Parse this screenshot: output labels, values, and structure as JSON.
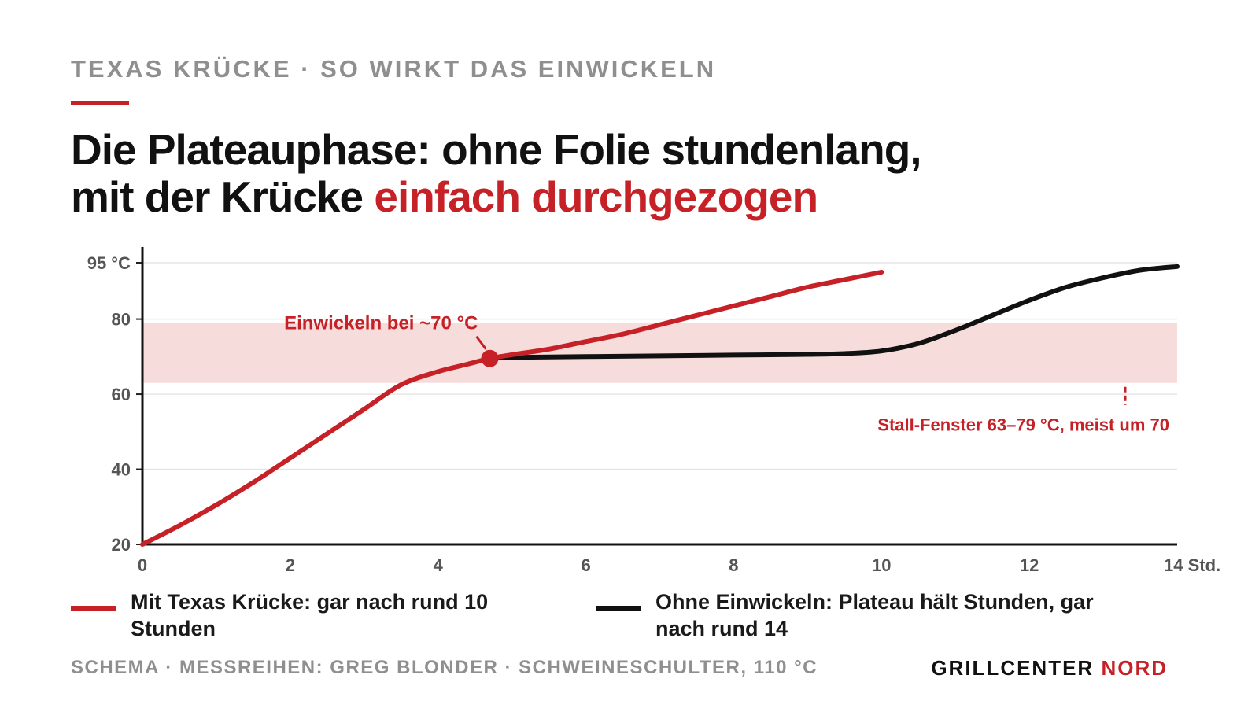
{
  "header": {
    "eyebrow": "TEXAS KRÜCKE · SO WIRKT DAS EINWICKELN",
    "headline_line1": "Die Plateauphase: ohne Folie stundenlang,",
    "headline_line2_prefix": "mit der Krücke ",
    "headline_line2_highlight": "einfach durchgezogen"
  },
  "colors": {
    "accent": "#c62127",
    "black": "#111111",
    "band": "#f7dcdc",
    "grid": "#e6e6e6",
    "muted": "#8f8f8f"
  },
  "chart_data": {
    "type": "line",
    "xlabel": "",
    "ylabel": "",
    "x_unit_label": "Std.",
    "y_unit_label": "°C",
    "xlim": [
      0,
      14
    ],
    "ylim": [
      20,
      95
    ],
    "x_ticks": [
      0,
      2,
      4,
      6,
      8,
      10,
      12,
      14
    ],
    "x_tick_labels": [
      "0",
      "2",
      "4",
      "6",
      "8",
      "10",
      "12",
      "14 Std."
    ],
    "y_ticks": [
      20,
      40,
      60,
      80,
      95
    ],
    "y_tick_labels": [
      "20",
      "40",
      "60",
      "80",
      "95 °C"
    ],
    "grid": true,
    "band": {
      "from": 63,
      "to": 79,
      "label": "Stall-Fenster 63–79 °C, meist um 70",
      "marker_x": 13.3
    },
    "series": [
      {
        "name": "Mit Texas Krücke: gar nach rund 10 Stunden",
        "color": "#c62127",
        "points": [
          [
            0,
            20
          ],
          [
            0.5,
            25
          ],
          [
            1,
            30.5
          ],
          [
            1.5,
            36.5
          ],
          [
            2,
            43
          ],
          [
            2.5,
            49.5
          ],
          [
            3,
            56
          ],
          [
            3.5,
            62.5
          ],
          [
            4,
            66
          ],
          [
            4.4,
            68
          ],
          [
            4.7,
            69.5
          ],
          [
            5,
            70.5
          ],
          [
            5.5,
            72
          ],
          [
            6,
            74
          ],
          [
            6.5,
            76
          ],
          [
            7,
            78.5
          ],
          [
            7.5,
            81
          ],
          [
            8,
            83.5
          ],
          [
            8.5,
            86
          ],
          [
            9,
            88.5
          ],
          [
            9.5,
            90.5
          ],
          [
            10,
            92.5
          ]
        ]
      },
      {
        "name": "Ohne Einwickeln: Plateau hält Stunden, gar nach rund 14",
        "color": "#111111",
        "points": [
          [
            4.7,
            69.5
          ],
          [
            5,
            69.8
          ],
          [
            6,
            70
          ],
          [
            7,
            70.2
          ],
          [
            8,
            70.4
          ],
          [
            9,
            70.6
          ],
          [
            9.5,
            70.8
          ],
          [
            10,
            71.5
          ],
          [
            10.5,
            73.5
          ],
          [
            11,
            77
          ],
          [
            11.5,
            81
          ],
          [
            12,
            85
          ],
          [
            12.5,
            88.5
          ],
          [
            13,
            91
          ],
          [
            13.5,
            93
          ],
          [
            14,
            94
          ]
        ]
      }
    ],
    "annotations": [
      {
        "text": "Einwickeln bei ~70 °C",
        "x": 4.7,
        "y": 69.5
      }
    ]
  },
  "legend": [
    {
      "text": "Mit Texas Krücke: gar nach rund 10 Stunden",
      "color": "#c62127"
    },
    {
      "text": "Ohne Einwickeln: Plateau hält Stunden, gar nach rund 14",
      "color": "#111111"
    }
  ],
  "footer": {
    "source": "SCHEMA · MESSREIHEN: GREG BLONDER · SCHWEINESCHULTER, 110 °C",
    "brand_prefix": "GRILLCENTER ",
    "brand_accent": "NORD"
  }
}
